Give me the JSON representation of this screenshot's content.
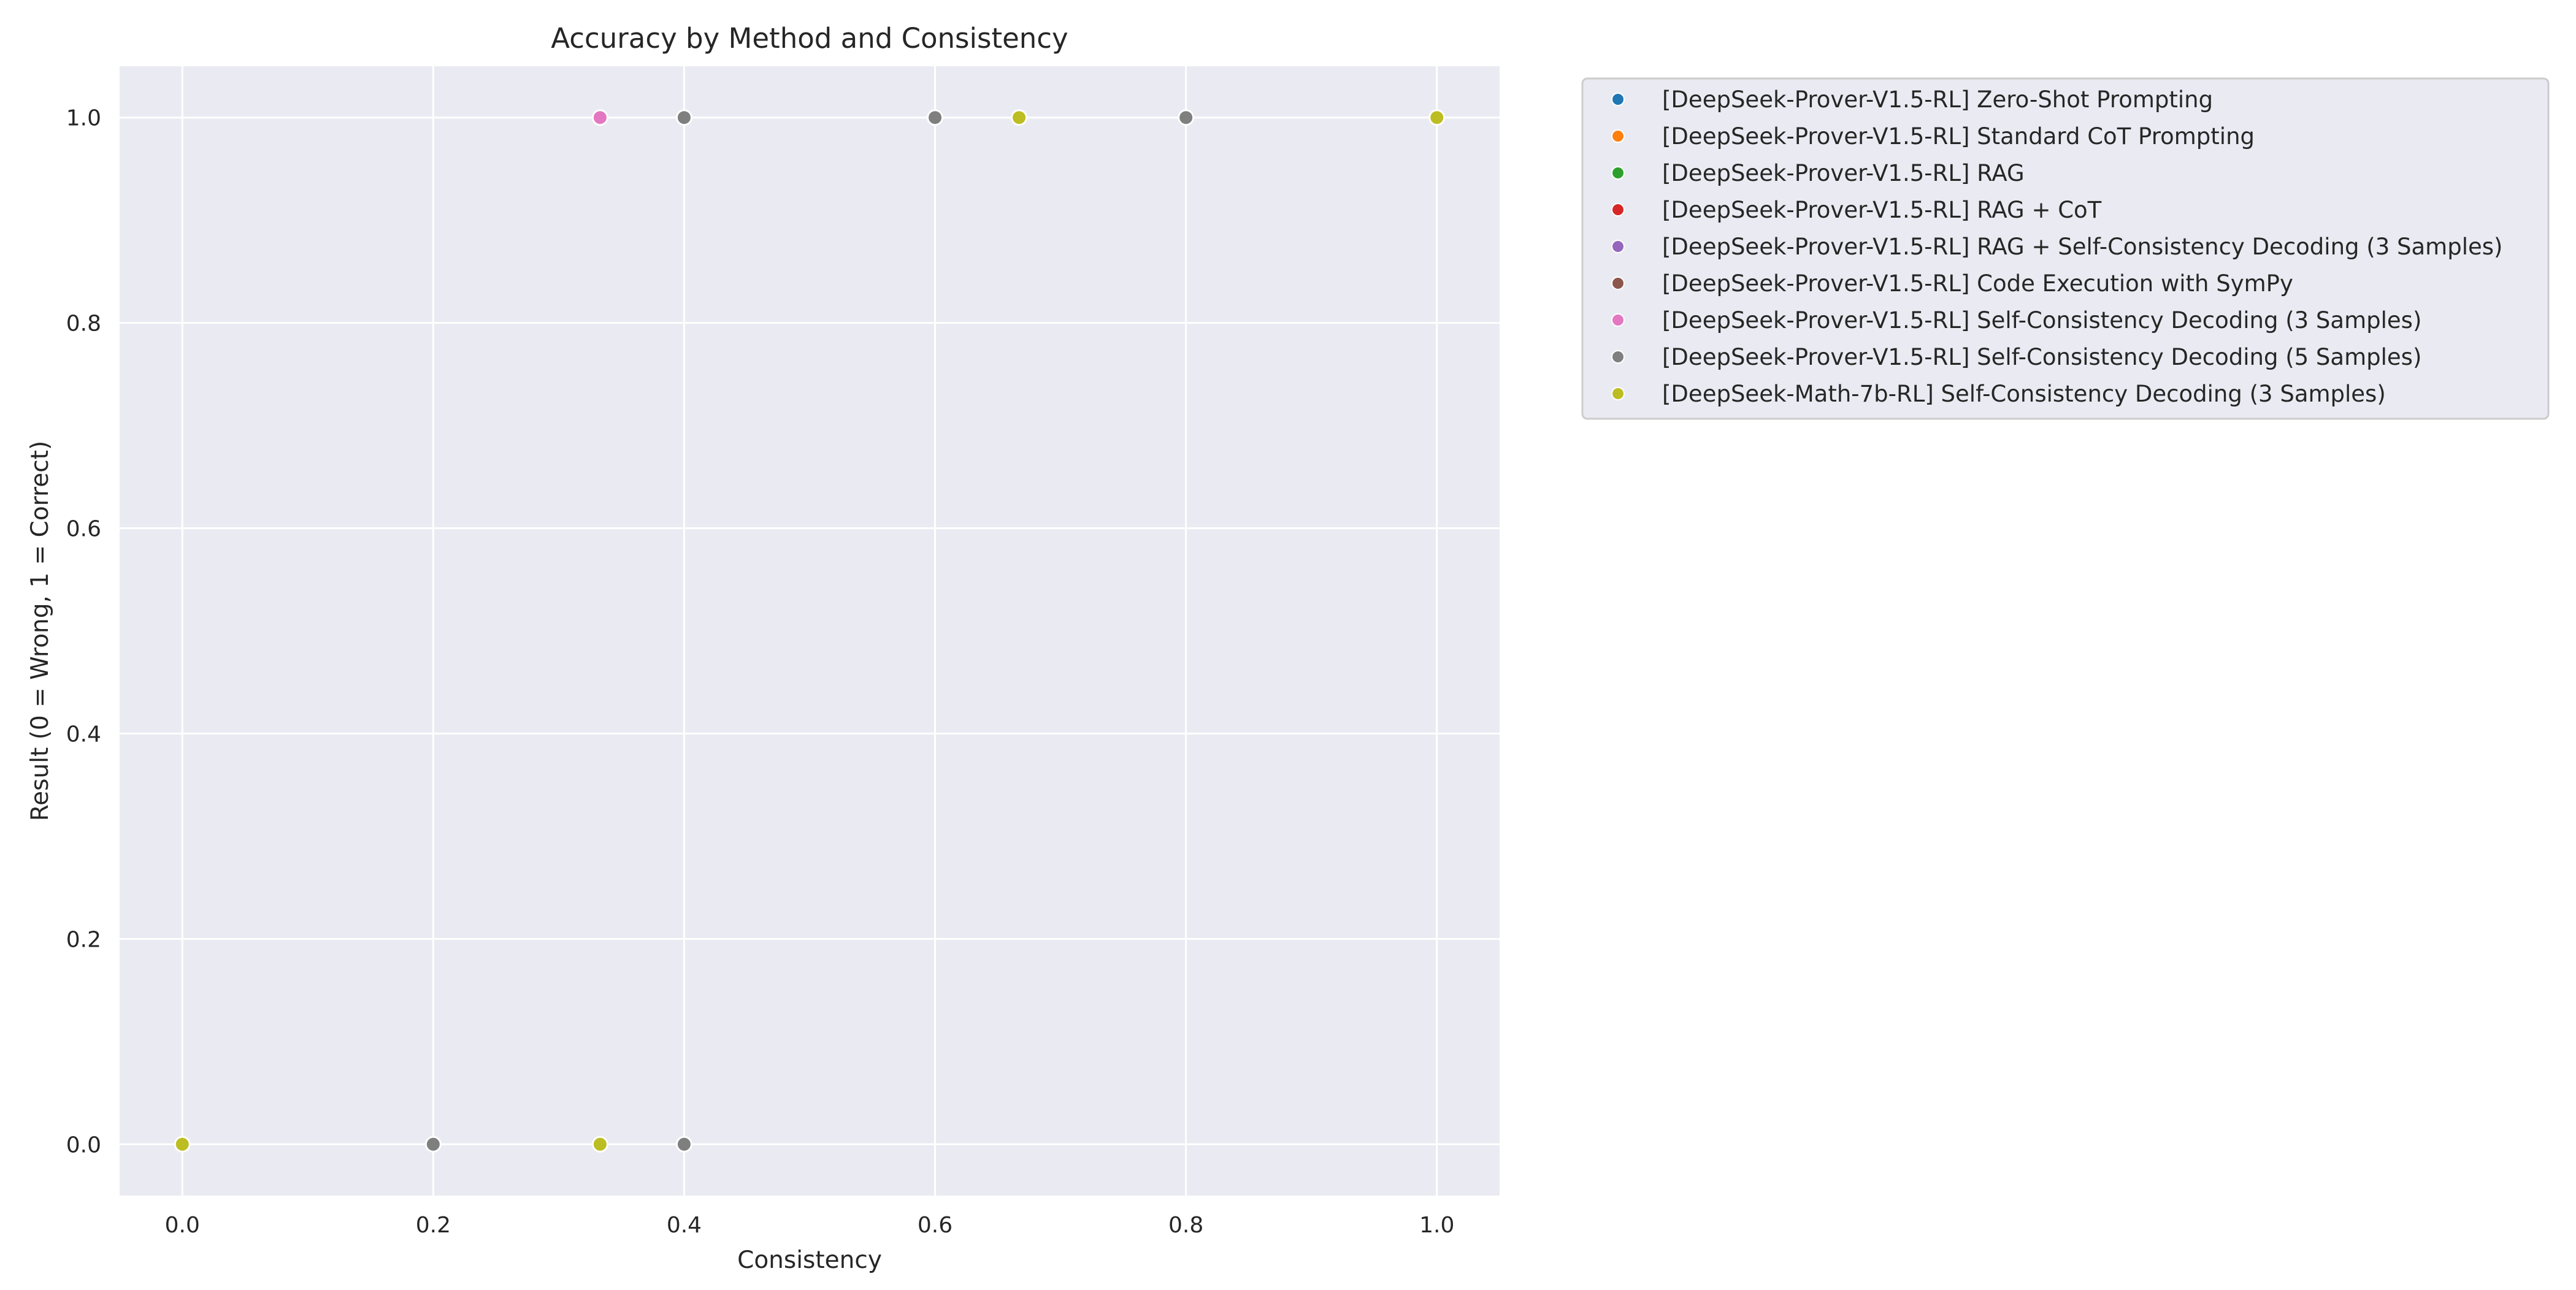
{
  "chart_data": {
    "type": "scatter",
    "title": "Accuracy by Method and Consistency",
    "xlabel": "Consistency",
    "ylabel": "Result (0 = Wrong, 1 = Correct)",
    "xlim": [
      -0.05,
      1.05
    ],
    "ylim": [
      -0.05,
      1.05
    ],
    "xticks": [
      "0.0",
      "0.2",
      "0.4",
      "0.6",
      "0.8",
      "1.0"
    ],
    "yticks": [
      "0.0",
      "0.2",
      "0.4",
      "0.6",
      "0.8",
      "1.0"
    ],
    "grid": true,
    "legend_position": "outside-right",
    "background_color": "#eaeaf2",
    "grid_color": "#ffffff",
    "series": [
      {
        "name": "[DeepSeek-Prover-V1.5-RL] Zero-Shot Prompting",
        "color": "#1f77b4",
        "points": []
      },
      {
        "name": "[DeepSeek-Prover-V1.5-RL] Standard CoT Prompting",
        "color": "#ff7f0e",
        "points": []
      },
      {
        "name": "[DeepSeek-Prover-V1.5-RL] RAG",
        "color": "#2ca02c",
        "points": []
      },
      {
        "name": "[DeepSeek-Prover-V1.5-RL] RAG + CoT",
        "color": "#d62728",
        "points": []
      },
      {
        "name": "[DeepSeek-Prover-V1.5-RL] RAG + Self-Consistency Decoding (3 Samples)",
        "color": "#9467bd",
        "points": []
      },
      {
        "name": "[DeepSeek-Prover-V1.5-RL] Code Execution with SymPy",
        "color": "#8c564b",
        "points": []
      },
      {
        "name": "[DeepSeek-Prover-V1.5-RL] Self-Consistency Decoding (3 Samples)",
        "color": "#e377c2",
        "points": [
          [
            0.333,
            1
          ]
        ]
      },
      {
        "name": "[DeepSeek-Prover-V1.5-RL] Self-Consistency Decoding (5 Samples)",
        "color": "#7f7f7f",
        "points": [
          [
            0.4,
            1
          ],
          [
            0.6,
            1
          ],
          [
            0.8,
            1
          ],
          [
            0.2,
            0
          ],
          [
            0.4,
            0
          ]
        ]
      },
      {
        "name": "[DeepSeek-Math-7b-RL] Self-Consistency Decoding (3 Samples)",
        "color": "#bcbd22",
        "points": [
          [
            0.667,
            1
          ],
          [
            1.0,
            1
          ],
          [
            0.0,
            0
          ],
          [
            0.333,
            0
          ]
        ]
      }
    ]
  }
}
